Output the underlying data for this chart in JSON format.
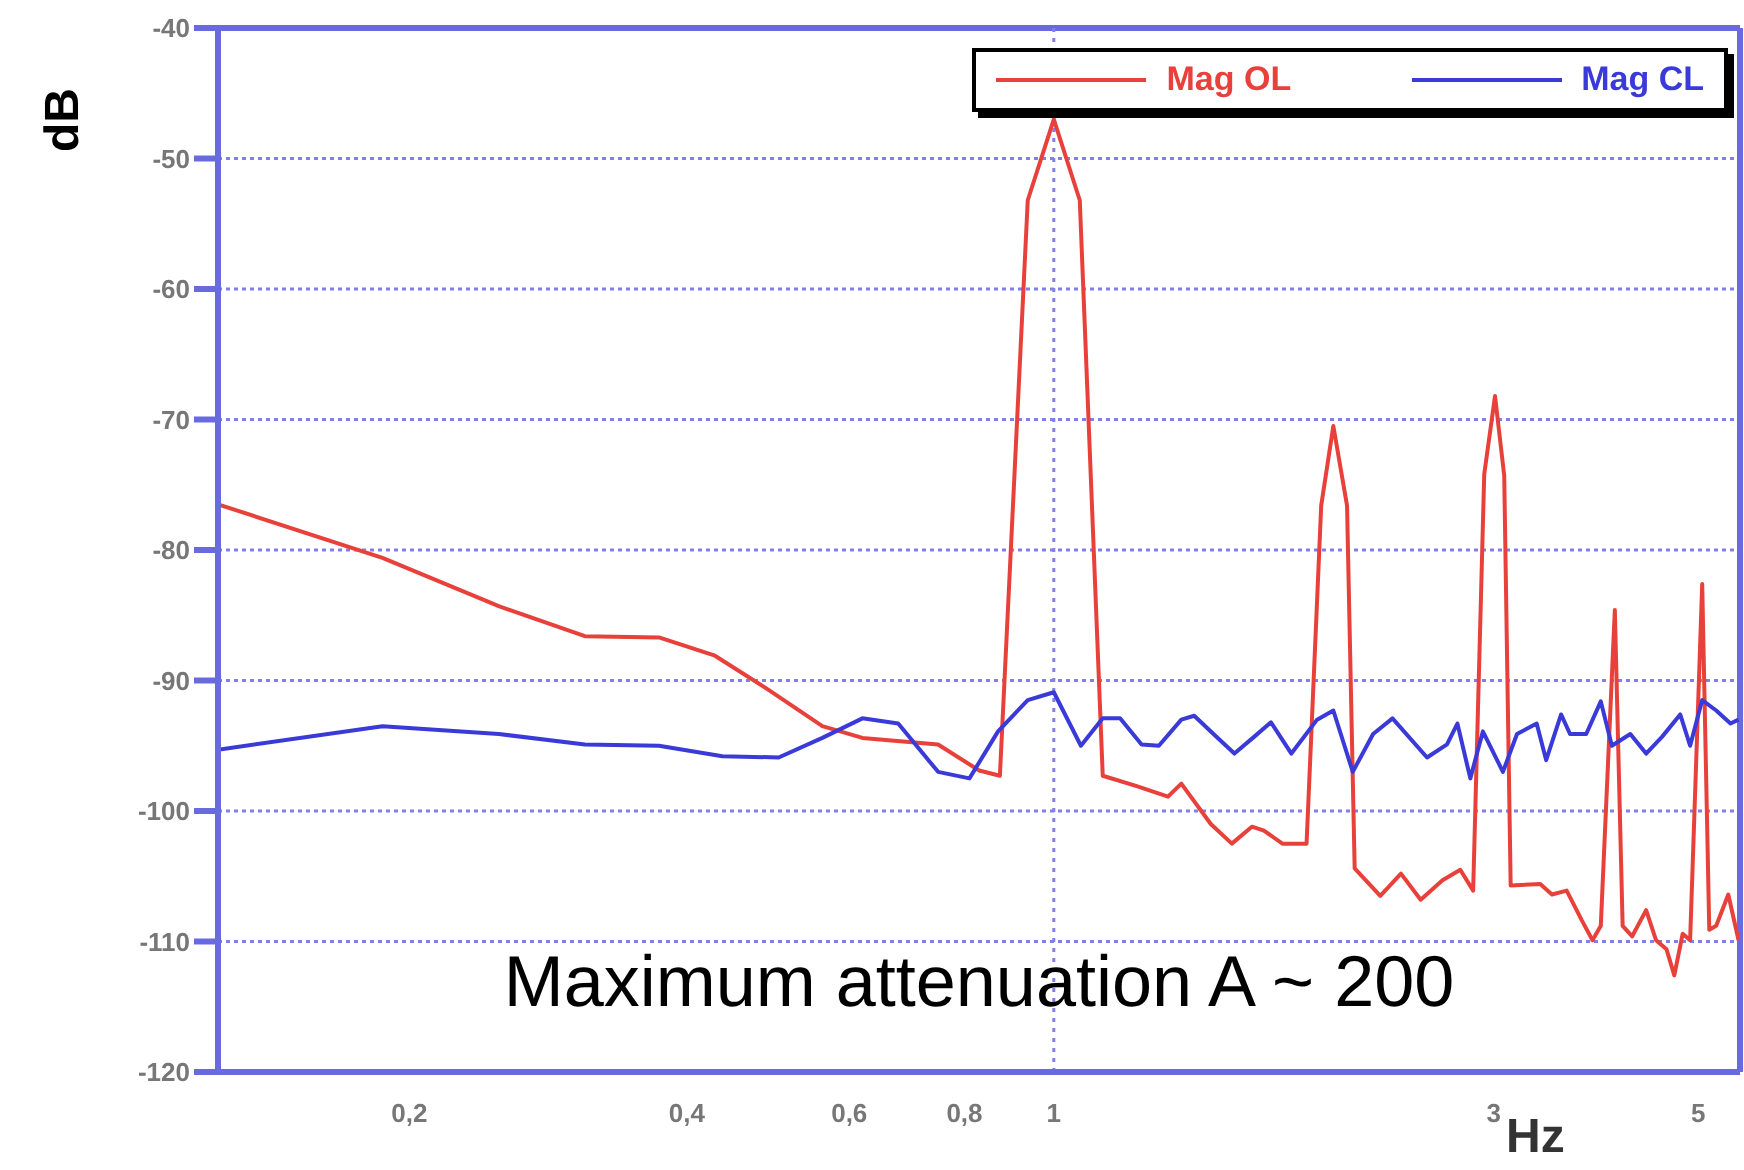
{
  "chart_data": {
    "type": "line",
    "xlabel": "Hz",
    "ylabel": "dB",
    "log": "x",
    "grid": "y",
    "legend": "top right",
    "line_style": "solid",
    "marker": "none",
    "xlim": [
      0.124,
      5.55
    ],
    "xticks": [
      {
        "value": 0.2,
        "label": "0,2"
      },
      {
        "value": 0.4,
        "label": "0,4"
      },
      {
        "value": 0.6,
        "label": "0,6"
      },
      {
        "value": 0.8,
        "label": "0,8"
      },
      1,
      3,
      5
    ],
    "ylim": [
      -120,
      -40
    ],
    "yticks": [
      -120,
      -110,
      -100,
      -90,
      -80,
      -70,
      -60,
      -50,
      -40
    ],
    "ref_lines": [
      {
        "axis": "x",
        "value": 1,
        "color": "#8080e8",
        "line_style": "dotted"
      }
    ],
    "annotations": [
      "Maximum attenuation A ~ 200"
    ],
    "series": [
      {
        "name": "Mag OL",
        "color": "#e8413c",
        "x": [
          0.124,
          0.187,
          0.25,
          0.31,
          0.373,
          0.429,
          0.49,
          0.561,
          0.62,
          0.749,
          0.83,
          0.874,
          0.937,
          1,
          1.067,
          1.13,
          1.23,
          1.33,
          1.375,
          1.48,
          1.56,
          1.64,
          1.69,
          1.77,
          1.88,
          1.95,
          2.01,
          2.08,
          2.12,
          2.26,
          2.38,
          2.5,
          2.64,
          2.76,
          2.85,
          2.93,
          3.01,
          3.08,
          3.13,
          3.37,
          3.47,
          3.6,
          3.74,
          3.84,
          3.92,
          4.06,
          4.14,
          4.24,
          4.39,
          4.5,
          4.62,
          4.71,
          4.81,
          4.9,
          5.05,
          5.14,
          5.23,
          5.39,
          5.53
        ],
        "values": [
          -76.5,
          -80.6,
          -84.3,
          -86.6,
          -86.7,
          -88.1,
          -90.7,
          -93.5,
          -94.4,
          -94.9,
          -96.9,
          -97.3,
          -53.2,
          -47,
          -53.2,
          -97.3,
          -98.1,
          -98.9,
          -97.9,
          -101,
          -102.5,
          -101.2,
          -101.5,
          -102.5,
          -102.5,
          -76.6,
          -70.5,
          -76.6,
          -104.4,
          -106.5,
          -104.8,
          -106.8,
          -105.3,
          -104.5,
          -106.1,
          -74.2,
          -68.2,
          -74.3,
          -105.7,
          -105.6,
          -106.4,
          -106.1,
          -108.4,
          -109.9,
          -108.8,
          -84.6,
          -108.8,
          -109.6,
          -107.6,
          -109.9,
          -110.6,
          -112.6,
          -109.4,
          -109.9,
          -82.6,
          -109.1,
          -108.8,
          -106.4,
          -109.9
        ]
      },
      {
        "name": "Mag CL",
        "color": "#3a3ad8",
        "x": [
          0.124,
          0.187,
          0.25,
          0.31,
          0.373,
          0.437,
          0.503,
          0.561,
          0.62,
          0.678,
          0.749,
          0.81,
          0.87,
          0.937,
          1,
          1.07,
          1.13,
          1.18,
          1.245,
          1.3,
          1.375,
          1.42,
          1.49,
          1.57,
          1.65,
          1.72,
          1.81,
          1.93,
          2.01,
          2.11,
          2.22,
          2.33,
          2.54,
          2.67,
          2.74,
          2.83,
          2.92,
          3.07,
          3.18,
          3.34,
          3.42,
          3.55,
          3.63,
          3.78,
          3.92,
          4.03,
          4.22,
          4.39,
          4.57,
          4.78,
          4.9,
          5.05,
          5.23,
          5.42,
          5.53
        ],
        "values": [
          -95.3,
          -93.5,
          -94.1,
          -94.9,
          -95,
          -95.8,
          -95.9,
          -94.4,
          -92.9,
          -93.3,
          -97,
          -97.5,
          -93.9,
          -91.5,
          -90.9,
          -95,
          -92.9,
          -92.9,
          -94.9,
          -95,
          -93,
          -92.7,
          -94.1,
          -95.6,
          -94.3,
          -93.2,
          -95.6,
          -93,
          -92.3,
          -97,
          -94.1,
          -92.9,
          -95.9,
          -94.9,
          -93.3,
          -97.5,
          -93.9,
          -97,
          -94.1,
          -93.3,
          -96.1,
          -92.6,
          -94.1,
          -94.1,
          -91.6,
          -95,
          -94.1,
          -95.6,
          -94.3,
          -92.6,
          -95,
          -91.5,
          -92.3,
          -93.3,
          -93
        ]
      }
    ]
  }
}
